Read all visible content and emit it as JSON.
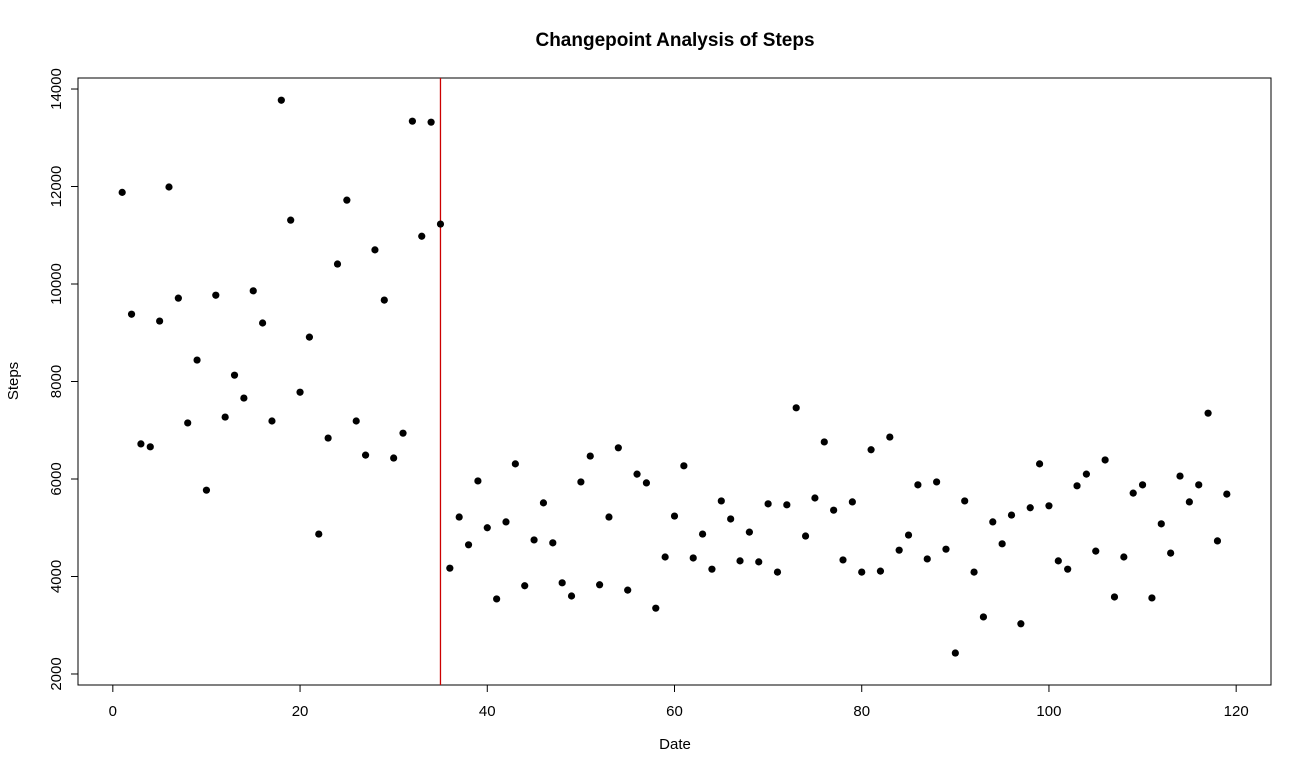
{
  "chart_data": {
    "type": "scatter",
    "title": "Changepoint Analysis of Steps",
    "x_label": "Date",
    "y_label": "Steps",
    "x": [
      1,
      2,
      3,
      4,
      5,
      6,
      7,
      8,
      9,
      10,
      11,
      12,
      13,
      14,
      15,
      16,
      17,
      18,
      19,
      20,
      21,
      22,
      23,
      24,
      25,
      26,
      27,
      28,
      29,
      30,
      31,
      32,
      33,
      34,
      35,
      36,
      37,
      38,
      39,
      40,
      41,
      42,
      43,
      44,
      45,
      46,
      47,
      48,
      49,
      50,
      51,
      52,
      53,
      54,
      55,
      56,
      57,
      58,
      59,
      60,
      61,
      62,
      63,
      64,
      65,
      66,
      67,
      68,
      69,
      70,
      71,
      72,
      73,
      74,
      75,
      76,
      77,
      78,
      79,
      80,
      81,
      82,
      83,
      84,
      85,
      86,
      87,
      88,
      89,
      90,
      91,
      92,
      93,
      94,
      95,
      96,
      97,
      98,
      99,
      100,
      101,
      102,
      103,
      104,
      105,
      106,
      107,
      108,
      109,
      110,
      111,
      112,
      113,
      114,
      115,
      116,
      117,
      118,
      119
    ],
    "series": [
      {
        "color": "#000000",
        "values": [
          11880,
          9380,
          6720,
          6660,
          9240,
          11990,
          9710,
          7150,
          8440,
          5770,
          9770,
          7270,
          8130,
          7660,
          9860,
          9200,
          7190,
          13770,
          11310,
          7780,
          8910,
          4870,
          6840,
          10410,
          11720,
          7190,
          6490,
          10700,
          9670,
          6430,
          6940,
          13340,
          10980,
          13320,
          11230,
          4170,
          5220,
          4650,
          5960,
          5000,
          3540,
          5120,
          6310,
          3810,
          4750,
          5510,
          4690,
          3870,
          3600,
          5940,
          6470,
          3830,
          5220,
          6640,
          3720,
          6100,
          5920,
          3350,
          4400,
          5240,
          6270,
          4380,
          4870,
          4150,
          5550,
          5180,
          4320,
          4910,
          4300,
          5490,
          4090,
          5470,
          7460,
          4830,
          5610,
          6760,
          5360,
          4340,
          5530,
          4090,
          6600,
          4110,
          6860,
          4540,
          4850,
          5880,
          4360,
          5940,
          4560,
          2430,
          5550,
          4090,
          3170,
          5120,
          4670,
          5260,
          3030,
          5410,
          6310,
          5450,
          4320,
          4150,
          5860,
          6100,
          4520,
          6390,
          3580,
          4400,
          5710,
          5880,
          3560,
          5080,
          4480,
          6060,
          5530,
          5880,
          7350,
          4730,
          5690
        ]
      }
    ],
    "changepoint": {
      "x": 35,
      "color": "#cc0000"
    },
    "xlim": [
      -3.72,
      123.72
    ],
    "ylim": [
      1774,
      14226
    ],
    "xticks": [
      0,
      20,
      40,
      60,
      80,
      100,
      120
    ],
    "yticks": [
      2000,
      4000,
      6000,
      8000,
      10000,
      12000,
      14000
    ],
    "grid": false
  }
}
